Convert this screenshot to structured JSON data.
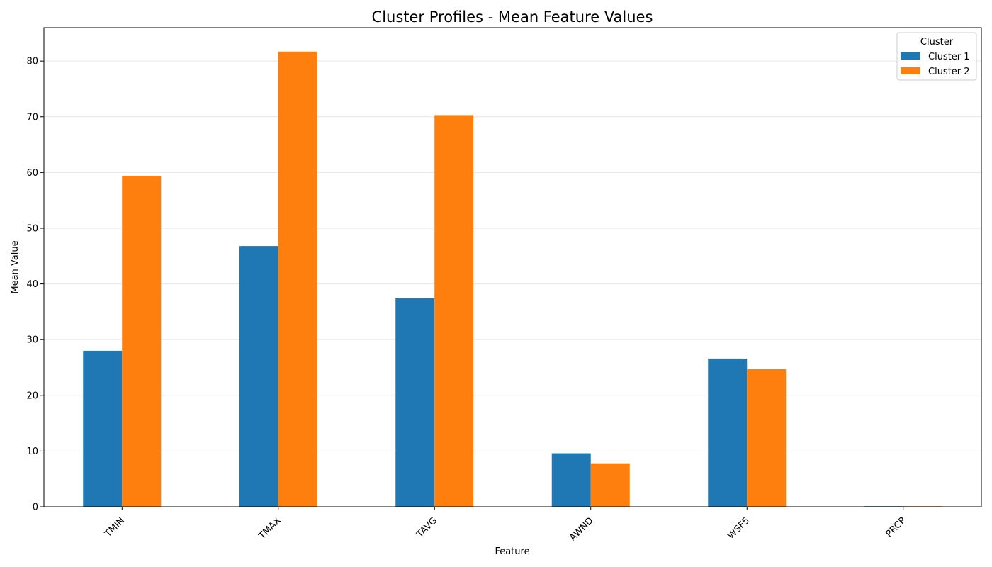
{
  "chart_data": {
    "type": "bar",
    "title": "Cluster Profiles - Mean Feature Values",
    "xlabel": "Feature",
    "ylabel": "Mean Value",
    "categories": [
      "TMIN",
      "TMAX",
      "TAVG",
      "AWND",
      "WSF5",
      "PRCP"
    ],
    "series": [
      {
        "name": "Cluster 1",
        "color": "#1f77b4",
        "values": [
          28.0,
          46.8,
          37.4,
          9.6,
          26.6,
          0.1
        ]
      },
      {
        "name": "Cluster 2",
        "color": "#ff7f0e",
        "values": [
          59.4,
          81.7,
          70.3,
          7.8,
          24.7,
          0.1
        ]
      }
    ],
    "ylim": [
      0,
      86
    ],
    "yticks": [
      0,
      10,
      20,
      30,
      40,
      50,
      60,
      70,
      80
    ],
    "grid": "y",
    "legend": {
      "title": "Cluster",
      "position": "top-right"
    }
  }
}
